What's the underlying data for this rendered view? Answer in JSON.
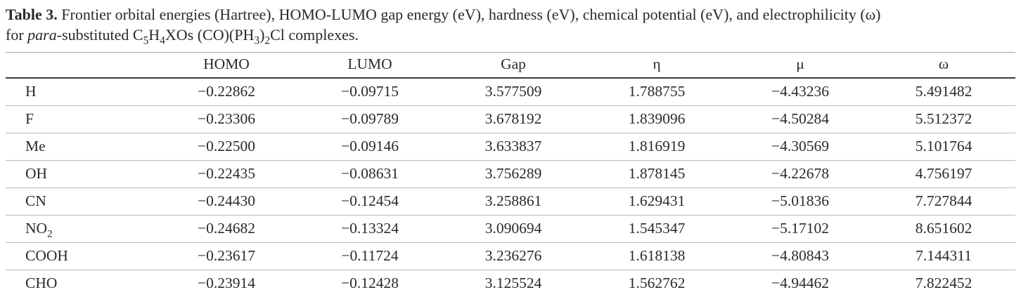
{
  "theme": {
    "background": "#ffffff",
    "ink": "#2a2a2a",
    "rule_light": "#a8a8a8",
    "rule_dark": "#3a3a3a"
  },
  "caption": {
    "segments": [
      {
        "b": "Table 3."
      },
      {
        "t": " Frontier orbital energies (Hartree), HOMO-LUMO gap energy (eV), hardness (eV), chemical potential (eV), and electrophilicity (ω)"
      },
      {
        "br": true
      },
      {
        "t": "for "
      },
      {
        "i": "para"
      },
      {
        "t": "-substituted C"
      },
      {
        "sub": "5"
      },
      {
        "t": "H"
      },
      {
        "sub": "4"
      },
      {
        "t": "XOs (CO)(PH"
      },
      {
        "sub": "3"
      },
      {
        "t": ")"
      },
      {
        "sub": "2"
      },
      {
        "t": "Cl complexes."
      }
    ]
  },
  "table": {
    "columns": [
      "",
      "HOMO",
      "LUMO",
      "Gap",
      "η",
      "μ",
      "ω"
    ],
    "rows": [
      {
        "substituent": [
          {
            "t": "H"
          }
        ],
        "values": [
          "−0.22862",
          "−0.09715",
          "3.577509",
          "1.788755",
          "−4.43236",
          "5.491482"
        ]
      },
      {
        "substituent": [
          {
            "t": "F"
          }
        ],
        "values": [
          "−0.23306",
          "−0.09789",
          "3.678192",
          "1.839096",
          "−4.50284",
          "5.512372"
        ]
      },
      {
        "substituent": [
          {
            "t": "Me"
          }
        ],
        "values": [
          "−0.22500",
          "−0.09146",
          "3.633837",
          "1.816919",
          "−4.30569",
          "5.101764"
        ]
      },
      {
        "substituent": [
          {
            "t": "OH"
          }
        ],
        "values": [
          "−0.22435",
          "−0.08631",
          "3.756289",
          "1.878145",
          "−4.22678",
          "4.756197"
        ]
      },
      {
        "substituent": [
          {
            "t": "CN"
          }
        ],
        "values": [
          "−0.24430",
          "−0.12454",
          "3.258861",
          "1.629431",
          "−5.01836",
          "7.727844"
        ]
      },
      {
        "substituent": [
          {
            "t": "NO"
          },
          {
            "sub": "2"
          }
        ],
        "values": [
          "−0.24682",
          "−0.13324",
          "3.090694",
          "1.545347",
          "−5.17102",
          "8.651602"
        ]
      },
      {
        "substituent": [
          {
            "t": "COOH"
          }
        ],
        "values": [
          "−0.23617",
          "−0.11724",
          "3.236276",
          "1.618138",
          "−4.80843",
          "7.144311"
        ]
      },
      {
        "substituent": [
          {
            "t": "CHO"
          }
        ],
        "values": [
          "−0.23914",
          "−0.12428",
          "3.125524",
          "1.562762",
          "−4.94462",
          "7.822452"
        ]
      }
    ]
  }
}
